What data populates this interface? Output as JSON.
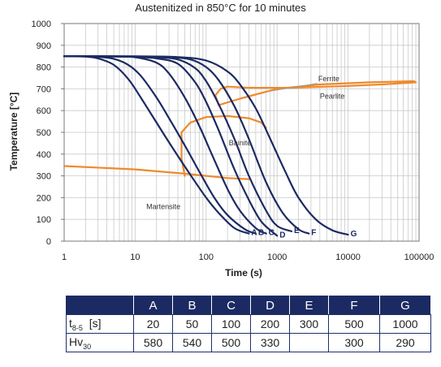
{
  "chart_data": {
    "type": "line",
    "title": "Austenitized in 850°C for 10 minutes",
    "xlabel": "Time (s)",
    "ylabel": "Temperature [°C]",
    "xscale": "log",
    "xlim": [
      1,
      100000
    ],
    "ylim": [
      0,
      1000
    ],
    "x_ticks": [
      1,
      10,
      100,
      1000,
      10000,
      100000
    ],
    "x_tick_labels": [
      "1",
      "10",
      "100",
      "1000",
      "10000",
      "100000"
    ],
    "y_ticks": [
      0,
      100,
      200,
      300,
      400,
      500,
      600,
      700,
      800,
      900,
      1000
    ],
    "y_tick_labels": [
      "0",
      "100",
      "200",
      "300",
      "400",
      "500",
      "600",
      "700",
      "800",
      "900",
      "1000"
    ],
    "grid": true,
    "curve_color": "#1c2a63",
    "region_color": "#ee8a2e",
    "series": [
      {
        "name": "A",
        "x": [
          1,
          2,
          3,
          5,
          8,
          12,
          20,
          35,
          60,
          100,
          150,
          250,
          400
        ],
        "y": [
          850,
          848,
          840,
          810,
          745,
          660,
          545,
          420,
          305,
          200,
          130,
          60,
          35
        ]
      },
      {
        "name": "B",
        "x": [
          1,
          2,
          3,
          5,
          8,
          12,
          20,
          30,
          50,
          80,
          130,
          200,
          350,
          500
        ],
        "y": [
          850,
          849,
          847,
          838,
          810,
          760,
          660,
          565,
          440,
          320,
          200,
          120,
          55,
          35
        ]
      },
      {
        "name": "C",
        "x": [
          1,
          5,
          10,
          20,
          30,
          50,
          80,
          120,
          200,
          300,
          500,
          700
        ],
        "y": [
          850,
          848,
          845,
          820,
          770,
          660,
          530,
          400,
          240,
          140,
          60,
          35
        ]
      },
      {
        "name": "D",
        "x": [
          1,
          5,
          10,
          20,
          40,
          70,
          100,
          150,
          250,
          400,
          600,
          1000
        ],
        "y": [
          850,
          849,
          847,
          840,
          815,
          730,
          640,
          510,
          330,
          190,
          90,
          25
        ]
      },
      {
        "name": "E",
        "x": [
          1,
          10,
          20,
          40,
          70,
          100,
          150,
          250,
          400,
          700,
          1000,
          1600
        ],
        "y": [
          850,
          849,
          846,
          835,
          795,
          735,
          630,
          470,
          300,
          140,
          70,
          45
        ]
      },
      {
        "name": "F",
        "x": [
          1,
          10,
          30,
          60,
          100,
          150,
          250,
          400,
          700,
          1200,
          2000,
          2800
        ],
        "y": [
          850,
          849,
          846,
          835,
          800,
          740,
          620,
          470,
          270,
          130,
          55,
          35
        ]
      },
      {
        "name": "G",
        "x": [
          1,
          10,
          40,
          100,
          200,
          300,
          500,
          800,
          1300,
          2000,
          3500,
          6000,
          10000
        ],
        "y": [
          850,
          849,
          846,
          830,
          780,
          720,
          610,
          470,
          320,
          200,
          100,
          50,
          30
        ]
      }
    ],
    "regions": [
      {
        "name": "Ferrite",
        "x": [
          160,
          135,
          150,
          300,
          1000,
          4000,
          20000,
          85000,
          90000,
          30000,
          8000,
          1500,
          400,
          200,
          160
        ],
        "y": [
          700,
          670,
          625,
          655,
          700,
          720,
          730,
          735,
          730,
          720,
          712,
          705,
          705,
          710,
          700
        ]
      },
      {
        "name": "Bainite",
        "x": [
          50,
          45,
          45,
          60,
          100,
          200,
          400,
          600,
          700
        ],
        "y": [
          300,
          380,
          500,
          545,
          570,
          575,
          565,
          545,
          520
        ]
      },
      {
        "name": "Martensite start",
        "x": [
          1,
          10,
          50,
          100,
          200,
          400
        ],
        "y": [
          345,
          330,
          310,
          300,
          290,
          285
        ]
      }
    ],
    "annotations": [
      "Ferrite",
      "Pearlite",
      "Bainite",
      "Martensite"
    ]
  },
  "table": {
    "columns": [
      "A",
      "B",
      "C",
      "D",
      "E",
      "F",
      "G"
    ],
    "t85_label_main": "t",
    "t85_label_sub": "8-5",
    "t85_label_unit": "[s]",
    "t85_values": [
      "20",
      "50",
      "100",
      "200",
      "300",
      "500",
      "1000"
    ],
    "hv_label_main": "Hv",
    "hv_label_sub": "30",
    "hv_values": [
      "580",
      "540",
      "500",
      "330",
      "",
      "300",
      "290"
    ]
  }
}
